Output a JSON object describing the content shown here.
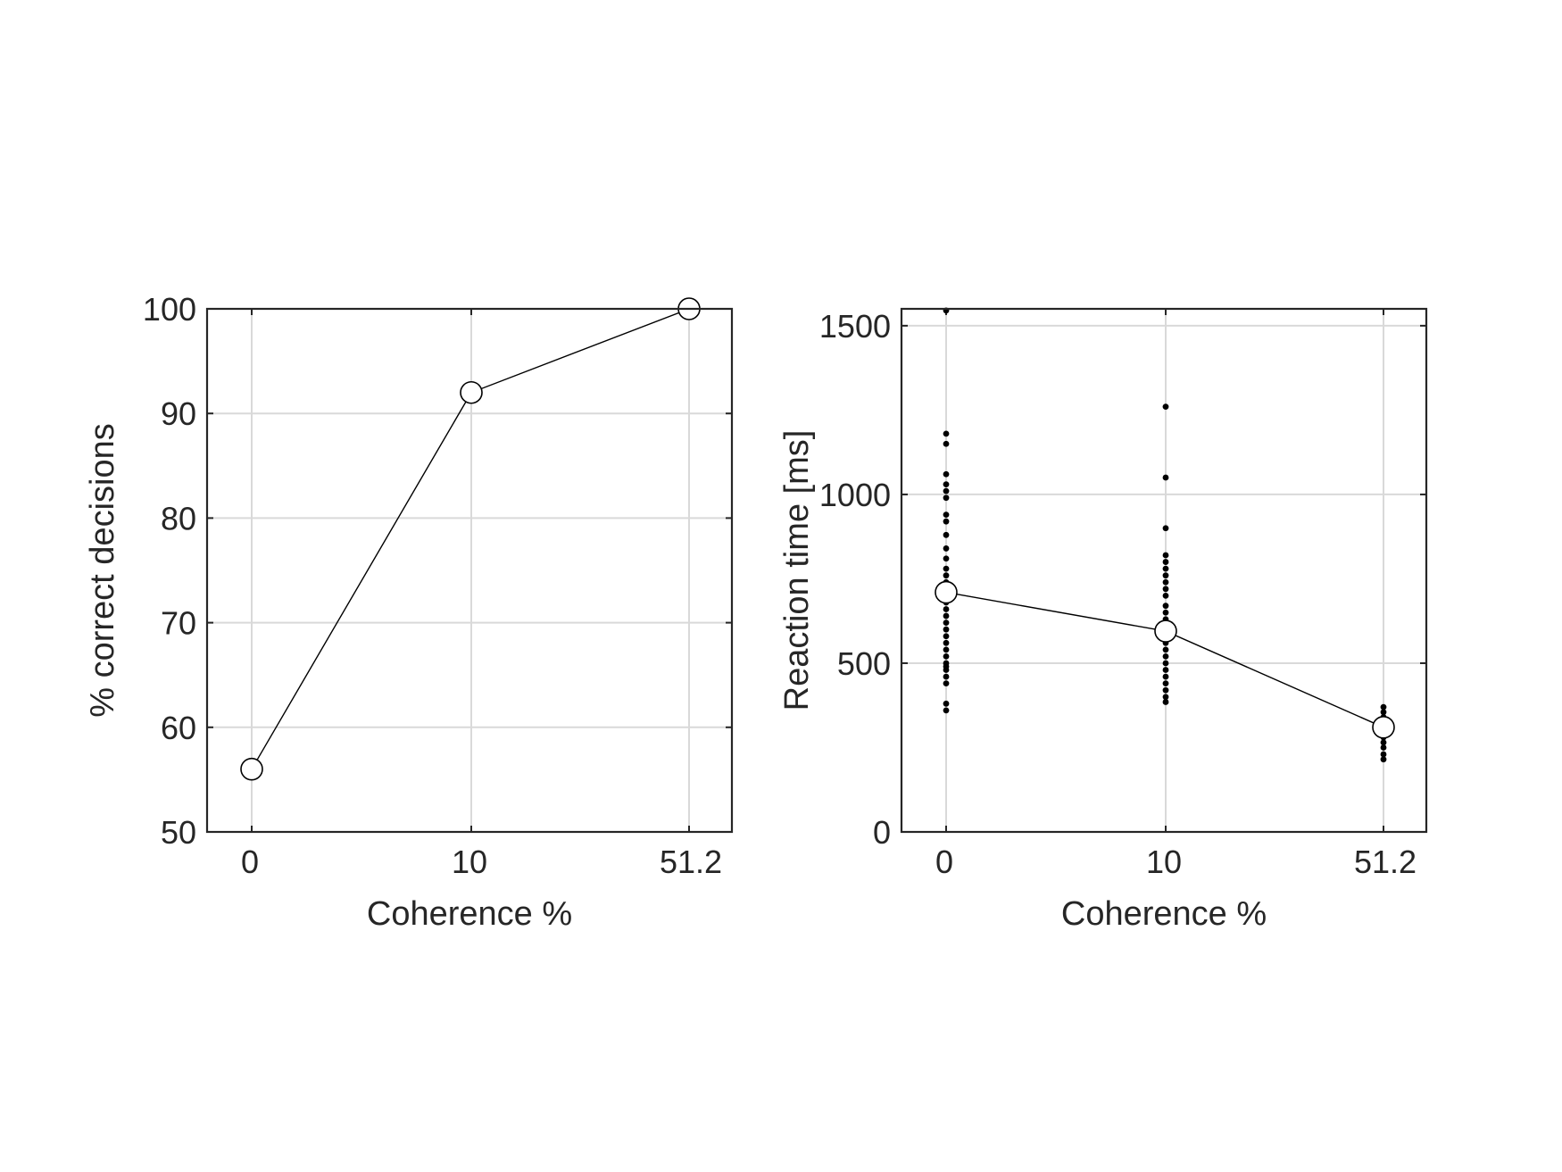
{
  "chart_data": [
    {
      "type": "line",
      "xlabel": "Coherence %",
      "ylabel": "% correct decisions",
      "categories": [
        "0",
        "10",
        "51.2"
      ],
      "ylim": [
        50,
        100
      ],
      "yticks": [
        50,
        60,
        70,
        80,
        90,
        100
      ],
      "grid": true,
      "series": [
        {
          "values": [
            56,
            92,
            100
          ],
          "marker": "open-circle",
          "color": "#000000"
        }
      ]
    },
    {
      "type": "line",
      "xlabel": "Coherence %",
      "ylabel": "Reaction time [ms]",
      "categories": [
        "0",
        "10",
        "51.2"
      ],
      "ylim": [
        0,
        1550
      ],
      "yticks": [
        0,
        500,
        1000,
        1500
      ],
      "grid": true,
      "series": [
        {
          "values": [
            710,
            595,
            310
          ],
          "marker": "open-circle",
          "color": "#000000"
        }
      ],
      "trials": [
        {
          "category": "0",
          "values": [
            360,
            380,
            440,
            460,
            480,
            490,
            500,
            520,
            540,
            560,
            580,
            600,
            620,
            640,
            660,
            680,
            700,
            720,
            740,
            760,
            780,
            810,
            840,
            880,
            920,
            940,
            990,
            1010,
            1030,
            1060,
            1150,
            1180,
            1545
          ]
        },
        {
          "category": "10",
          "values": [
            385,
            400,
            420,
            440,
            460,
            480,
            500,
            520,
            540,
            560,
            575,
            590,
            610,
            630,
            650,
            670,
            700,
            720,
            740,
            760,
            780,
            800,
            820,
            900,
            1050,
            1260
          ]
        },
        {
          "category": "51.2",
          "values": [
            215,
            230,
            250,
            265,
            280,
            295,
            310,
            325,
            340,
            355,
            370
          ]
        }
      ]
    }
  ]
}
